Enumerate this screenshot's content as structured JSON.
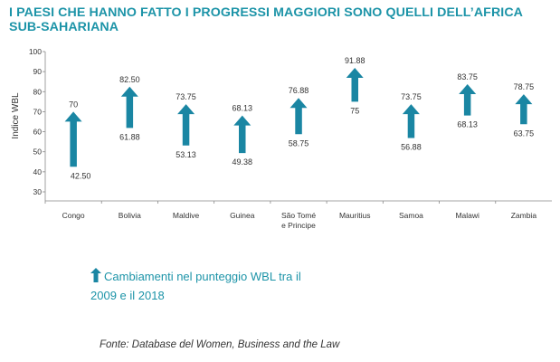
{
  "title": "I PAESI CHE HANNO FATTO I PROGRESSI MAGGIORI SONO QUELLI DELL’AFRICA SUB-SAHARIANA",
  "legend": {
    "label_line1": "Cambiamenti nel punteggio WBL tra il",
    "label_line2": "2009 e il 2018",
    "icon": "up-arrow-icon"
  },
  "source": "Fonte: Database del Women, Business and the Law",
  "colors": {
    "accent": "#1d94a8",
    "arrow": "#1a86a3",
    "text": "#333333"
  },
  "chart_data": {
    "type": "arrow-range",
    "ylabel": "Indice WBL",
    "xlabel": "",
    "ylim": [
      30,
      100
    ],
    "yticks": [
      30,
      40,
      50,
      60,
      70,
      80,
      90,
      100
    ],
    "categories": [
      [
        "Congo"
      ],
      [
        "Bolivia"
      ],
      [
        "Maldive"
      ],
      [
        "Guinea"
      ],
      [
        "São Tomé",
        "e Principe"
      ],
      [
        "Mauritius"
      ],
      [
        "Samoa"
      ],
      [
        "Malawi"
      ],
      [
        "Zambia"
      ]
    ],
    "start_2009": [
      42.5,
      61.88,
      53.13,
      49.38,
      58.75,
      75,
      56.88,
      68.13,
      63.75
    ],
    "end_2018": [
      70,
      82.5,
      73.75,
      68.13,
      76.88,
      91.88,
      73.75,
      83.75,
      78.75
    ],
    "start_labels": [
      "42.50",
      "61.88",
      "53.13",
      "49.38",
      "58.75",
      "75",
      "56.88",
      "68.13",
      "63.75"
    ],
    "end_labels": [
      "70",
      "82.50",
      "73.75",
      "68.13",
      "76.88",
      "91.88",
      "73.75",
      "83.75",
      "78.75"
    ],
    "grid": false
  }
}
